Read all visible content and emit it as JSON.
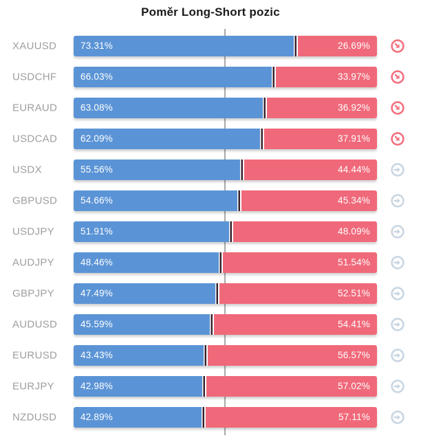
{
  "title": "Poměr Long-Short pozic",
  "colors": {
    "long_bar": "#5b94d6",
    "short_bar": "#f0697a",
    "divider_dark": "#38222c",
    "divider_gap": "#ffffff",
    "center_line": "#a9a9a9",
    "symbol_label": "#9e9e9e",
    "percent_text": "#ffffff",
    "trend_down_icon": "#f3717f",
    "trend_right_icon": "#c9d6e2"
  },
  "icons": {
    "down": "arrow-down-right-circle-icon",
    "right": "arrow-right-circle-icon"
  },
  "chart_data": {
    "type": "bar",
    "variant": "horizontal-stacked-percent",
    "title": "Poměr Long-Short pozic",
    "series": [
      "Long",
      "Short"
    ],
    "xlim": [
      0,
      100
    ],
    "center_reference_pct": 50,
    "grid": false,
    "legend": "none",
    "rows": [
      {
        "symbol": "XAUUSD",
        "long": 73.31,
        "short": 26.69,
        "long_label": "73.31%",
        "short_label": "26.69%",
        "trend": "down"
      },
      {
        "symbol": "USDCHF",
        "long": 66.03,
        "short": 33.97,
        "long_label": "66.03%",
        "short_label": "33.97%",
        "trend": "down"
      },
      {
        "symbol": "EURAUD",
        "long": 63.08,
        "short": 36.92,
        "long_label": "63.08%",
        "short_label": "36.92%",
        "trend": "down"
      },
      {
        "symbol": "USDCAD",
        "long": 62.09,
        "short": 37.91,
        "long_label": "62.09%",
        "short_label": "37.91%",
        "trend": "down"
      },
      {
        "symbol": "USDX",
        "long": 55.56,
        "short": 44.44,
        "long_label": "55.56%",
        "short_label": "44.44%",
        "trend": "right"
      },
      {
        "symbol": "GBPUSD",
        "long": 54.66,
        "short": 45.34,
        "long_label": "54.66%",
        "short_label": "45.34%",
        "trend": "right"
      },
      {
        "symbol": "USDJPY",
        "long": 51.91,
        "short": 48.09,
        "long_label": "51.91%",
        "short_label": "48.09%",
        "trend": "right"
      },
      {
        "symbol": "AUDJPY",
        "long": 48.46,
        "short": 51.54,
        "long_label": "48.46%",
        "short_label": "51.54%",
        "trend": "right"
      },
      {
        "symbol": "GBPJPY",
        "long": 47.49,
        "short": 52.51,
        "long_label": "47.49%",
        "short_label": "52.51%",
        "trend": "right"
      },
      {
        "symbol": "AUDUSD",
        "long": 45.59,
        "short": 54.41,
        "long_label": "45.59%",
        "short_label": "54.41%",
        "trend": "right"
      },
      {
        "symbol": "EURUSD",
        "long": 43.43,
        "short": 56.57,
        "long_label": "43.43%",
        "short_label": "56.57%",
        "trend": "right"
      },
      {
        "symbol": "EURJPY",
        "long": 42.98,
        "short": 57.02,
        "long_label": "42.98%",
        "short_label": "57.02%",
        "trend": "right"
      },
      {
        "symbol": "NZDUSD",
        "long": 42.89,
        "short": 57.11,
        "long_label": "42.89%",
        "short_label": "57.11%",
        "trend": "right"
      }
    ]
  }
}
